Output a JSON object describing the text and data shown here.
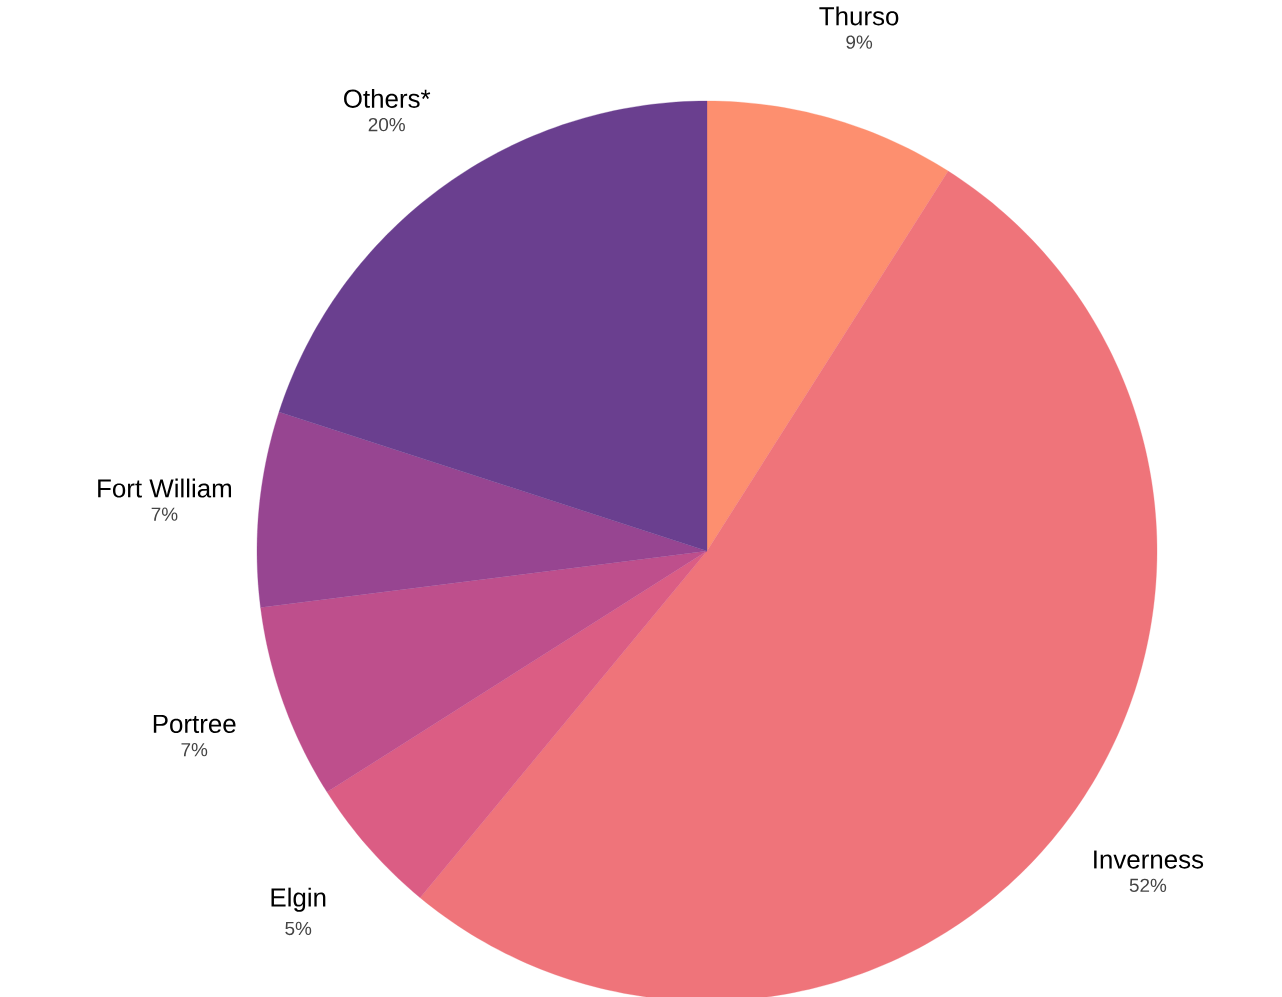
{
  "chart_data": {
    "type": "pie",
    "categories": [
      "Thurso",
      "Inverness",
      "Elgin",
      "Portree",
      "Fort William",
      "Others*"
    ],
    "values": [
      9,
      52,
      5,
      7,
      7,
      20
    ],
    "value_labels": [
      "9%",
      "52%",
      "5%",
      "7%",
      "7%",
      "20%"
    ],
    "colors": [
      "#fd8f6f",
      "#ef747a",
      "#db5d84",
      "#be4f8c",
      "#974591",
      "#6a3f8f"
    ]
  }
}
